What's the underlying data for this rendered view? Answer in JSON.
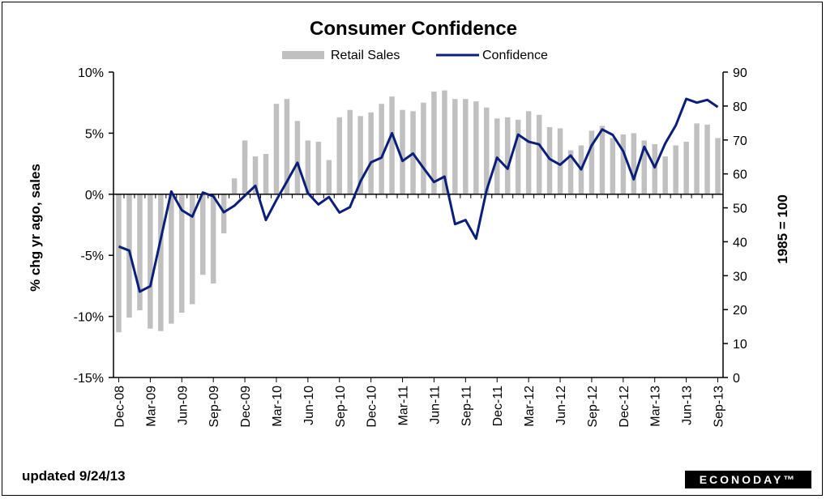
{
  "chart_data": {
    "type": "bar+line",
    "title": "Consumer Confidence",
    "legend": [
      {
        "label": "Retail Sales",
        "kind": "bar",
        "color": "#c0c0c0"
      },
      {
        "label": "Confidence",
        "kind": "line",
        "color": "#0b1f7a"
      }
    ],
    "legend_position": "top-center",
    "y_left": {
      "label": "% chg yr ago, sales",
      "range": [
        -15,
        10
      ],
      "ticks": [
        -15,
        -10,
        -5,
        0,
        5,
        10
      ],
      "tick_labels": [
        "-15%",
        "-10%",
        "-5%",
        "0%",
        "5%",
        "10%"
      ]
    },
    "y_right": {
      "label": "1985 = 100",
      "range": [
        0,
        90
      ],
      "ticks": [
        0,
        10,
        20,
        30,
        40,
        50,
        60,
        70,
        80,
        90
      ],
      "tick_labels": [
        "0",
        "10",
        "20",
        "30",
        "40",
        "50",
        "60",
        "70",
        "80",
        "90"
      ]
    },
    "x_tick_labels": [
      "Dec-08",
      "Mar-09",
      "Jun-09",
      "Sep-09",
      "Dec-09",
      "Mar-10",
      "Jun-10",
      "Sep-10",
      "Dec-10",
      "Mar-11",
      "Jun-11",
      "Sep-11",
      "Dec-11",
      "Mar-12",
      "Jun-12",
      "Sep-12",
      "Dec-12",
      "Mar-13",
      "Jun-13",
      "Sep-13"
    ],
    "months": [
      "Dec-08",
      "Jan-09",
      "Feb-09",
      "Mar-09",
      "Apr-09",
      "May-09",
      "Jun-09",
      "Jul-09",
      "Aug-09",
      "Sep-09",
      "Oct-09",
      "Nov-09",
      "Dec-09",
      "Jan-10",
      "Feb-10",
      "Mar-10",
      "Apr-10",
      "May-10",
      "Jun-10",
      "Jul-10",
      "Aug-10",
      "Sep-10",
      "Oct-10",
      "Nov-10",
      "Dec-10",
      "Jan-11",
      "Feb-11",
      "Mar-11",
      "Apr-11",
      "May-11",
      "Jun-11",
      "Jul-11",
      "Aug-11",
      "Sep-11",
      "Oct-11",
      "Nov-11",
      "Dec-11",
      "Jan-12",
      "Feb-12",
      "Mar-12",
      "Apr-12",
      "May-12",
      "Jun-12",
      "Jul-12",
      "Aug-12",
      "Sep-12",
      "Oct-12",
      "Nov-12",
      "Dec-12",
      "Jan-13",
      "Feb-13",
      "Mar-13",
      "Apr-13",
      "May-13",
      "Jun-13",
      "Jul-13",
      "Aug-13",
      "Sep-13"
    ],
    "series": [
      {
        "name": "Retail Sales",
        "axis": "left",
        "values": [
          -11.3,
          -10.1,
          -9.5,
          -11.0,
          -11.2,
          -10.6,
          -9.7,
          -9.0,
          -6.6,
          -7.3,
          -3.2,
          1.3,
          4.4,
          3.1,
          3.3,
          7.4,
          7.8,
          6.0,
          4.4,
          4.3,
          2.8,
          6.3,
          6.9,
          6.4,
          6.7,
          7.4,
          8.0,
          6.9,
          6.8,
          7.5,
          8.4,
          8.5,
          7.8,
          7.8,
          7.6,
          7.1,
          6.2,
          6.3,
          6.1,
          6.8,
          6.5,
          5.5,
          5.4,
          3.6,
          4.0,
          5.2,
          5.6,
          4.6,
          4.9,
          5.0,
          4.4,
          4.1,
          3.1,
          4.0,
          4.3,
          5.8,
          5.7,
          4.6
        ]
      },
      {
        "name": "Confidence",
        "axis": "right",
        "values": [
          38.6,
          37.4,
          25.3,
          26.9,
          40.8,
          54.8,
          49.3,
          47.4,
          54.5,
          53.4,
          48.7,
          50.6,
          53.6,
          56.5,
          46.4,
          52.3,
          57.7,
          63.3,
          54.3,
          51.0,
          53.2,
          48.6,
          50.2,
          57.8,
          63.4,
          64.8,
          72.0,
          63.8,
          66.0,
          61.7,
          57.6,
          59.2,
          45.2,
          46.4,
          40.9,
          55.2,
          64.8,
          61.5,
          71.6,
          69.5,
          68.7,
          64.4,
          62.7,
          65.4,
          61.3,
          68.4,
          73.1,
          71.5,
          66.7,
          58.4,
          68.0,
          61.9,
          69.0,
          74.3,
          82.1,
          81.0,
          81.8,
          79.7
        ]
      }
    ]
  },
  "footer": {
    "updated": "updated 9/24/13",
    "brand": "ECONODAY™"
  }
}
